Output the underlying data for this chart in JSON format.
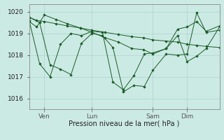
{
  "background_color": "#cceae4",
  "grid_color": "#aad4cc",
  "line_color": "#1a5c28",
  "marker_color": "#1a5c28",
  "xlabel": "Pression niveau de la mer( hPa )",
  "ylim": [
    1015.5,
    1020.35
  ],
  "yticks": [
    1016,
    1017,
    1018,
    1019,
    1020
  ],
  "xtick_labels": [
    "Ven",
    "Lun",
    "Sam",
    "Dim"
  ],
  "xtick_positions": [
    0.08,
    0.33,
    0.65,
    0.83
  ],
  "series": [
    {
      "x": [
        0.0,
        0.04,
        0.08,
        0.14,
        0.2,
        0.27,
        0.33,
        0.4,
        0.47,
        0.54,
        0.6,
        0.65,
        0.72,
        0.78,
        0.83,
        0.88,
        0.93,
        1.0
      ],
      "y": [
        1019.75,
        1019.6,
        1019.55,
        1019.45,
        1019.35,
        1019.25,
        1019.15,
        1019.05,
        1018.95,
        1018.85,
        1018.8,
        1018.7,
        1018.65,
        1018.6,
        1018.5,
        1018.45,
        1018.4,
        1018.35
      ]
    },
    {
      "x": [
        0.0,
        0.04,
        0.08,
        0.14,
        0.2,
        0.27,
        0.33,
        0.4,
        0.47,
        0.54,
        0.6,
        0.65,
        0.72,
        0.78,
        0.83,
        0.88,
        0.93,
        1.0
      ],
      "y": [
        1019.55,
        1019.3,
        1019.85,
        1019.65,
        1019.45,
        1019.25,
        1019.05,
        1018.8,
        1018.6,
        1018.3,
        1018.25,
        1018.05,
        1018.3,
        1019.2,
        1019.3,
        1019.55,
        1019.1,
        1019.35
      ]
    },
    {
      "x": [
        0.0,
        0.055,
        0.11,
        0.165,
        0.22,
        0.275,
        0.33,
        0.385,
        0.44,
        0.495,
        0.55,
        0.605,
        0.65,
        0.72,
        0.78,
        0.83,
        0.88,
        0.93,
        1.0
      ],
      "y": [
        1019.75,
        1019.5,
        1017.55,
        1017.35,
        1017.1,
        1018.55,
        1019.0,
        1018.9,
        1018.35,
        1016.3,
        1016.6,
        1016.55,
        1017.3,
        1018.05,
        1018.0,
        1018.05,
        1019.95,
        1019.05,
        1019.15
      ]
    },
    {
      "x": [
        0.0,
        0.055,
        0.11,
        0.165,
        0.22,
        0.275,
        0.33,
        0.385,
        0.44,
        0.495,
        0.55,
        0.605,
        0.65,
        0.72,
        0.78,
        0.83,
        0.88,
        0.93,
        1.0
      ],
      "y": [
        1019.6,
        1017.6,
        1017.0,
        1018.5,
        1019.0,
        1018.9,
        1019.1,
        1019.05,
        1016.75,
        1016.4,
        1017.05,
        1018.05,
        1018.1,
        1018.3,
        1018.9,
        1017.7,
        1017.95,
        1018.3,
        1019.3
      ]
    }
  ],
  "figsize": [
    3.2,
    2.0
  ],
  "dpi": 100
}
